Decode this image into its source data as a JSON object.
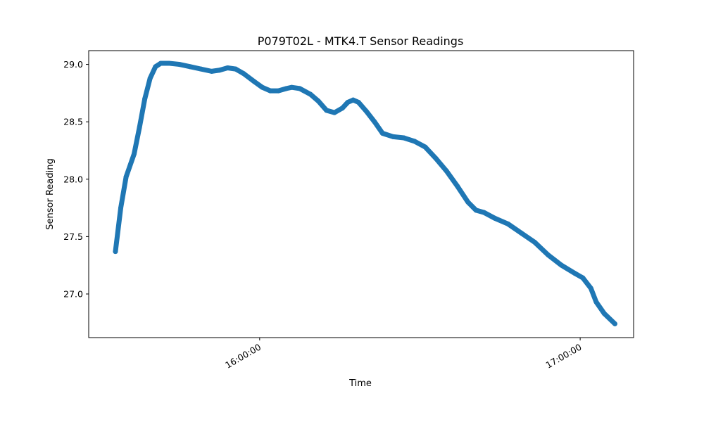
{
  "chart_data": {
    "type": "scatter",
    "title": "P079T02L - MTK4.T Sensor Readings",
    "xlabel": "Time",
    "ylabel": "Sensor Reading",
    "x_axis_type": "time",
    "xlim": [
      "15:28:00",
      "17:10:00"
    ],
    "ylim": [
      26.62,
      29.12
    ],
    "x_ticks": [
      {
        "value": "16:00:00",
        "label": "16:00:00"
      },
      {
        "value": "17:00:00",
        "label": "17:00:00"
      }
    ],
    "y_ticks": [
      {
        "value": 27.0,
        "label": "27.0"
      },
      {
        "value": 27.5,
        "label": "27.5"
      },
      {
        "value": 28.0,
        "label": "28.0"
      },
      {
        "value": 28.5,
        "label": "28.5"
      },
      {
        "value": 29.0,
        "label": "29.0"
      }
    ],
    "grid": false,
    "color": "#1f77b4",
    "series": [
      {
        "marker": "circle",
        "points": [
          [
            "15:33:00",
            27.37
          ],
          [
            "15:34:00",
            27.75
          ],
          [
            "15:35:00",
            28.02
          ],
          [
            "15:36:30",
            28.22
          ],
          [
            "15:37:30",
            28.45
          ],
          [
            "15:38:30",
            28.7
          ],
          [
            "15:39:30",
            28.88
          ],
          [
            "15:40:30",
            28.98
          ],
          [
            "15:41:30",
            29.01
          ],
          [
            "15:43:00",
            29.01
          ],
          [
            "15:45:00",
            29.0
          ],
          [
            "15:47:00",
            28.98
          ],
          [
            "15:49:00",
            28.96
          ],
          [
            "15:51:00",
            28.94
          ],
          [
            "15:52:30",
            28.95
          ],
          [
            "15:54:00",
            28.97
          ],
          [
            "15:55:30",
            28.96
          ],
          [
            "15:57:00",
            28.92
          ],
          [
            "15:59:00",
            28.85
          ],
          [
            "16:00:30",
            28.8
          ],
          [
            "16:02:00",
            28.77
          ],
          [
            "16:03:30",
            28.77
          ],
          [
            "16:05:00",
            28.79
          ],
          [
            "16:06:00",
            28.8
          ],
          [
            "16:07:30",
            28.79
          ],
          [
            "16:09:30",
            28.74
          ],
          [
            "16:11:00",
            28.68
          ],
          [
            "16:12:30",
            28.6
          ],
          [
            "16:14:00",
            28.58
          ],
          [
            "16:15:30",
            28.62
          ],
          [
            "16:16:30",
            28.67
          ],
          [
            "16:17:30",
            28.69
          ],
          [
            "16:18:30",
            28.67
          ],
          [
            "16:20:00",
            28.59
          ],
          [
            "16:21:30",
            28.5
          ],
          [
            "16:23:00",
            28.4
          ],
          [
            "16:25:00",
            28.37
          ],
          [
            "16:27:00",
            28.36
          ],
          [
            "16:29:00",
            28.33
          ],
          [
            "16:31:00",
            28.28
          ],
          [
            "16:33:00",
            28.18
          ],
          [
            "16:35:00",
            28.07
          ],
          [
            "16:37:00",
            27.94
          ],
          [
            "16:39:00",
            27.8
          ],
          [
            "16:40:30",
            27.73
          ],
          [
            "16:42:00",
            27.71
          ],
          [
            "16:44:00",
            27.66
          ],
          [
            "16:46:30",
            27.61
          ],
          [
            "16:49:00",
            27.53
          ],
          [
            "16:51:30",
            27.45
          ],
          [
            "16:54:00",
            27.34
          ],
          [
            "16:56:30",
            27.25
          ],
          [
            "16:59:00",
            27.18
          ],
          [
            "17:00:30",
            27.14
          ],
          [
            "17:02:00",
            27.05
          ],
          [
            "17:03:00",
            26.93
          ],
          [
            "17:04:30",
            26.83
          ],
          [
            "17:06:30",
            26.74
          ]
        ]
      }
    ]
  }
}
